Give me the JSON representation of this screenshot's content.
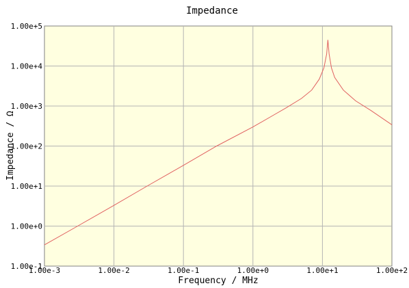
{
  "chart_data": {
    "type": "line",
    "title": "Impedance",
    "xlabel": "Frequency / MHz",
    "ylabel": "Impedance / Ω",
    "x_scale": "log",
    "y_scale": "log",
    "xlim": [
      0.001,
      100
    ],
    "ylim": [
      0.1,
      100000
    ],
    "grid": true,
    "x_ticks": [
      "1.00e-3",
      "1.00e-2",
      "1.00e-1",
      "1.00e+0",
      "1.00e+1",
      "1.00e+2"
    ],
    "y_ticks": [
      "1.00e-1",
      "1.00e+0",
      "1.00e+1",
      "1.00e+2",
      "1.00e+3",
      "1.00e+4",
      "1.00e+5"
    ],
    "colors": {
      "plot_background": "#ffffe0",
      "grid": "#b4b4b4",
      "series": "#e06060"
    },
    "series": [
      {
        "x": [
          0.001,
          0.003,
          0.01,
          0.03,
          0.1,
          0.3,
          1,
          2,
          3,
          5,
          7,
          9,
          10.5,
          11.5,
          12,
          12.5,
          13.5,
          15,
          20,
          30,
          50,
          100
        ],
        "y": [
          0.34,
          1.0,
          3.3,
          10,
          33,
          100,
          300,
          600,
          900,
          1550,
          2500,
          4700,
          9000,
          20000,
          45000,
          20000,
          9000,
          5200,
          2500,
          1350,
          770,
          340
        ]
      }
    ]
  }
}
